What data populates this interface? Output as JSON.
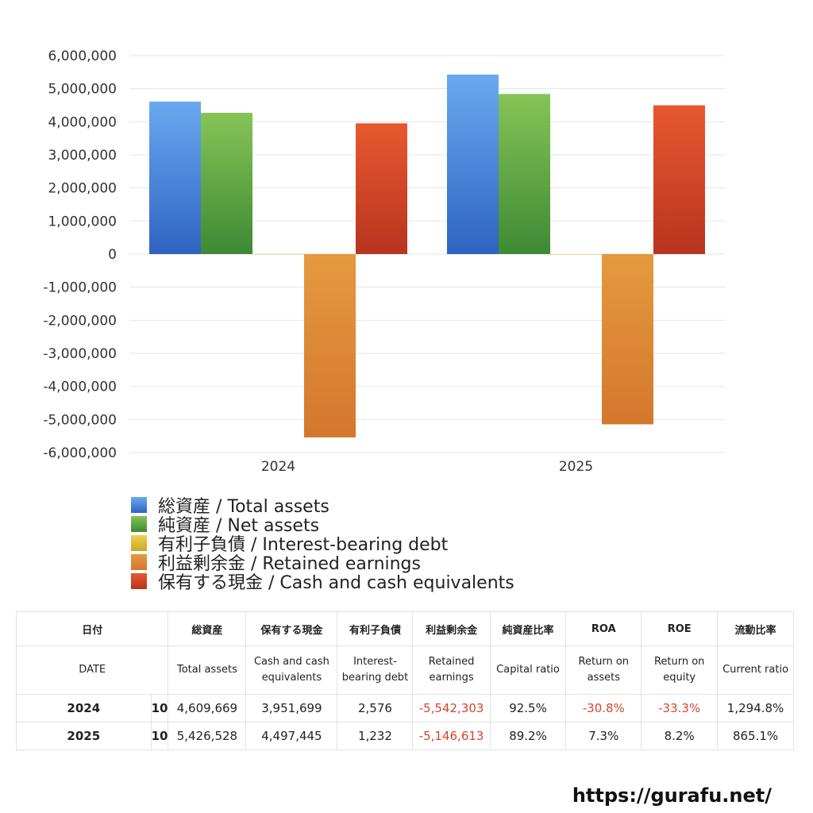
{
  "chart_data": {
    "type": "bar",
    "categories": [
      "2024",
      "2025"
    ],
    "y_ticks": [
      "6,000,000",
      "5,000,000",
      "4,000,000",
      "3,000,000",
      "2,000,000",
      "1,000,000",
      "0",
      "-1,000,000",
      "-2,000,000",
      "-3,000,000",
      "-4,000,000",
      "-5,000,000",
      "-6,000,000"
    ],
    "ylim": [
      -6000000,
      6000000
    ],
    "grid": true,
    "legend_placement": "bottom-left",
    "series": [
      {
        "name": "総資産 / Total assets",
        "values": [
          4609669,
          5426528
        ],
        "color_top": "#6aa9f0",
        "color_bottom": "#2f63c2"
      },
      {
        "name": "純資産 / Net assets",
        "values": [
          4270000,
          4840000
        ],
        "color_top": "#86c456",
        "color_bottom": "#3d8a34"
      },
      {
        "name": "有利子負債 / Interest-bearing debt",
        "values": [
          2576,
          1232
        ],
        "color_top": "#f0d24a",
        "color_bottom": "#c9a52a"
      },
      {
        "name": "利益剰余金 / Retained earnings",
        "values": [
          -5542303,
          -5146613
        ],
        "color_top": "#e59a3e",
        "color_bottom": "#d4772e"
      },
      {
        "name": "保有する現金 /  Cash and cash equivalents",
        "values": [
          3951699,
          4497445
        ],
        "color_top": "#e8582f",
        "color_bottom": "#b8341f"
      }
    ]
  },
  "table": {
    "headers_jp": [
      "日付",
      "",
      "総資産",
      "保有する現金",
      "有利子負債",
      "利益剰余金",
      "純資産比率",
      "ROA",
      "ROE",
      "流動比率"
    ],
    "headers_en": [
      "DATE",
      "",
      "Total assets",
      "Cash and cash equivalents",
      "Interest-bearing debt",
      "Retained earnings",
      "Capital ratio",
      "Return on assets",
      "Return on equity",
      "Current ratio"
    ],
    "rows": [
      {
        "year": "2024",
        "month": "10",
        "total_assets": "4,609,669",
        "cash": "3,951,699",
        "debt": "2,576",
        "retained": "-5,542,303",
        "capital_ratio": "92.5%",
        "roa": "-30.8%",
        "roe": "-33.3%",
        "current_ratio": "1,294.8%"
      },
      {
        "year": "2025",
        "month": "10",
        "total_assets": "5,426,528",
        "cash": "4,497,445",
        "debt": "1,232",
        "retained": "-5,146,613",
        "capital_ratio": "89.2%",
        "roa": "7.3%",
        "roe": "8.2%",
        "current_ratio": "865.1%"
      }
    ]
  },
  "footer": {
    "url": "https://gurafu.net/"
  },
  "colors": {
    "negative": "#d9442a",
    "grid": "#e6e6e6"
  }
}
